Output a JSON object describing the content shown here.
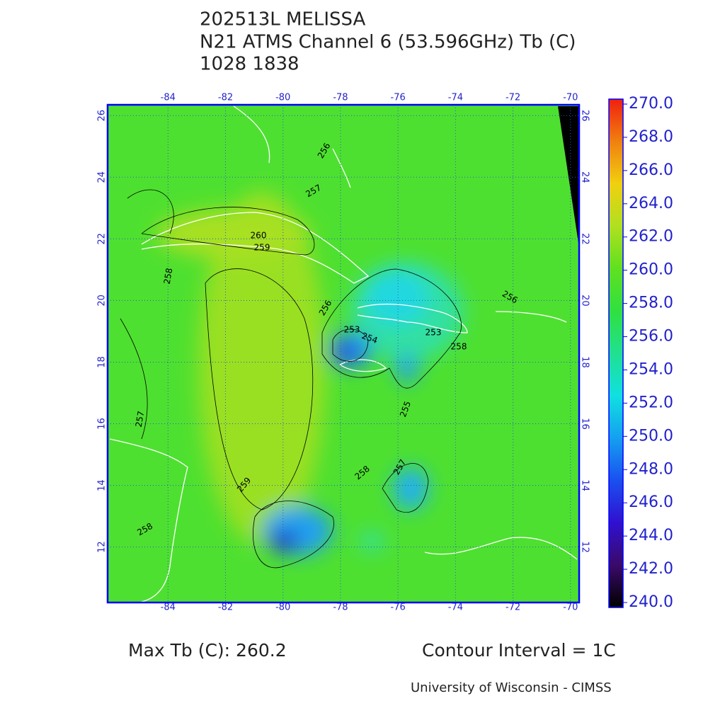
{
  "header": {
    "lines": [
      "202513L MELISSA",
      "N21 ATMS Channel 6 (53.596GHz) Tb (C)",
      "1028 1838"
    ]
  },
  "map": {
    "xlim": [
      -86.1,
      -69.7
    ],
    "ylim": [
      10.2,
      26.35
    ],
    "xticks": [
      -84,
      -82,
      -80,
      -78,
      -76,
      -74,
      -72,
      -70
    ],
    "yticks": [
      12,
      14,
      16,
      18,
      20,
      22,
      24,
      26
    ],
    "contour_labels": [
      256,
      257,
      260,
      259,
      258,
      256,
      253,
      254,
      253,
      258,
      255,
      257,
      258,
      259,
      258,
      257,
      256
    ]
  },
  "colorbar": {
    "lim": [
      240,
      270
    ],
    "ticks": [
      {
        "value": 240,
        "label": "240.0"
      },
      {
        "value": 242,
        "label": "242.0"
      },
      {
        "value": 244,
        "label": "244.0"
      },
      {
        "value": 246,
        "label": "246.0"
      },
      {
        "value": 248,
        "label": "248.0"
      },
      {
        "value": 250,
        "label": "250.0"
      },
      {
        "value": 252,
        "label": "252.0"
      },
      {
        "value": 254,
        "label": "254.0"
      },
      {
        "value": 256,
        "label": "256.0"
      },
      {
        "value": 258,
        "label": "258.0"
      },
      {
        "value": 260,
        "label": "260.0"
      },
      {
        "value": 262,
        "label": "262.0"
      },
      {
        "value": 264,
        "label": "264.0"
      },
      {
        "value": 266,
        "label": "266.0"
      },
      {
        "value": 268,
        "label": "268.0"
      },
      {
        "value": 270,
        "label": "270.0"
      }
    ],
    "colors": [
      "#000000",
      "#3a0a6a",
      "#3010d0",
      "#1a50f0",
      "#14a0f0",
      "#10e0e0",
      "#20e090",
      "#30e040",
      "#60e020",
      "#b0e020",
      "#f0d010",
      "#f08010",
      "#f02010"
    ]
  },
  "footer": {
    "max_tb": "Max Tb (C): 260.2",
    "contour_interval": "Contour Interval = 1C",
    "credit": "University of Wisconsin - CIMSS"
  }
}
